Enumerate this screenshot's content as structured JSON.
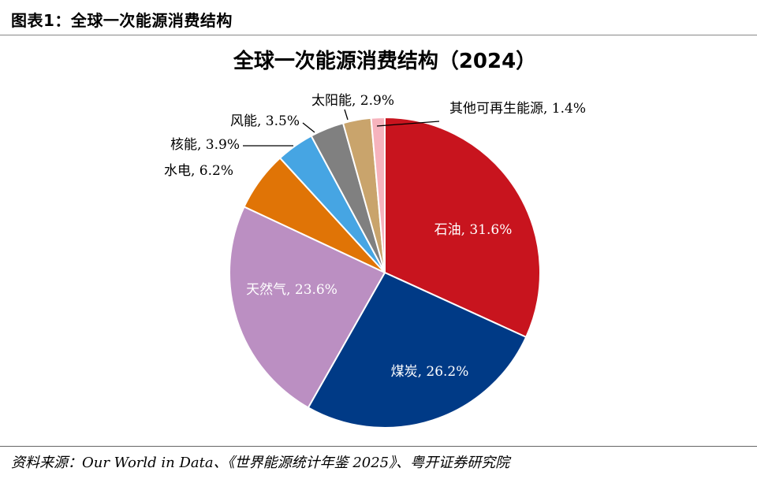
{
  "header": {
    "figure_title": "图表1：全球一次能源消费结构"
  },
  "footer": {
    "source": "资料来源：Our World in Data、《世界能源统计年鉴 2025》、粤开证券研究院"
  },
  "chart_data": {
    "type": "pie",
    "title": "全球一次能源消费结构（2024）",
    "legend": "none",
    "slices": [
      {
        "label": "石油",
        "value": 31.6,
        "text": "石油, 31.6%",
        "color": "#c8141e",
        "label_color": "#ffffff"
      },
      {
        "label": "煤炭",
        "value": 26.2,
        "text": "煤炭, 26.2%",
        "color": "#003a86",
        "label_color": "#ffffff"
      },
      {
        "label": "天然气",
        "value": 23.6,
        "text": "天然气, 23.6%",
        "color": "#bb8fc2",
        "label_color": "#ffffff"
      },
      {
        "label": "水电",
        "value": 6.2,
        "text": "水电, 6.2%",
        "color": "#e07406",
        "label_color": "#000000"
      },
      {
        "label": "核能",
        "value": 3.9,
        "text": "核能, 3.9%",
        "color": "#46a5e3",
        "label_color": "#000000"
      },
      {
        "label": "风能",
        "value": 3.5,
        "text": "风能, 3.5%",
        "color": "#808080",
        "label_color": "#000000"
      },
      {
        "label": "太阳能",
        "value": 2.9,
        "text": "太阳能, 2.9%",
        "color": "#c9a46c",
        "label_color": "#000000"
      },
      {
        "label": "其他可再生能源",
        "value": 1.4,
        "text": "其他可再生能源, 1.4%",
        "color": "#f6b3bd",
        "label_color": "#000000"
      }
    ]
  }
}
